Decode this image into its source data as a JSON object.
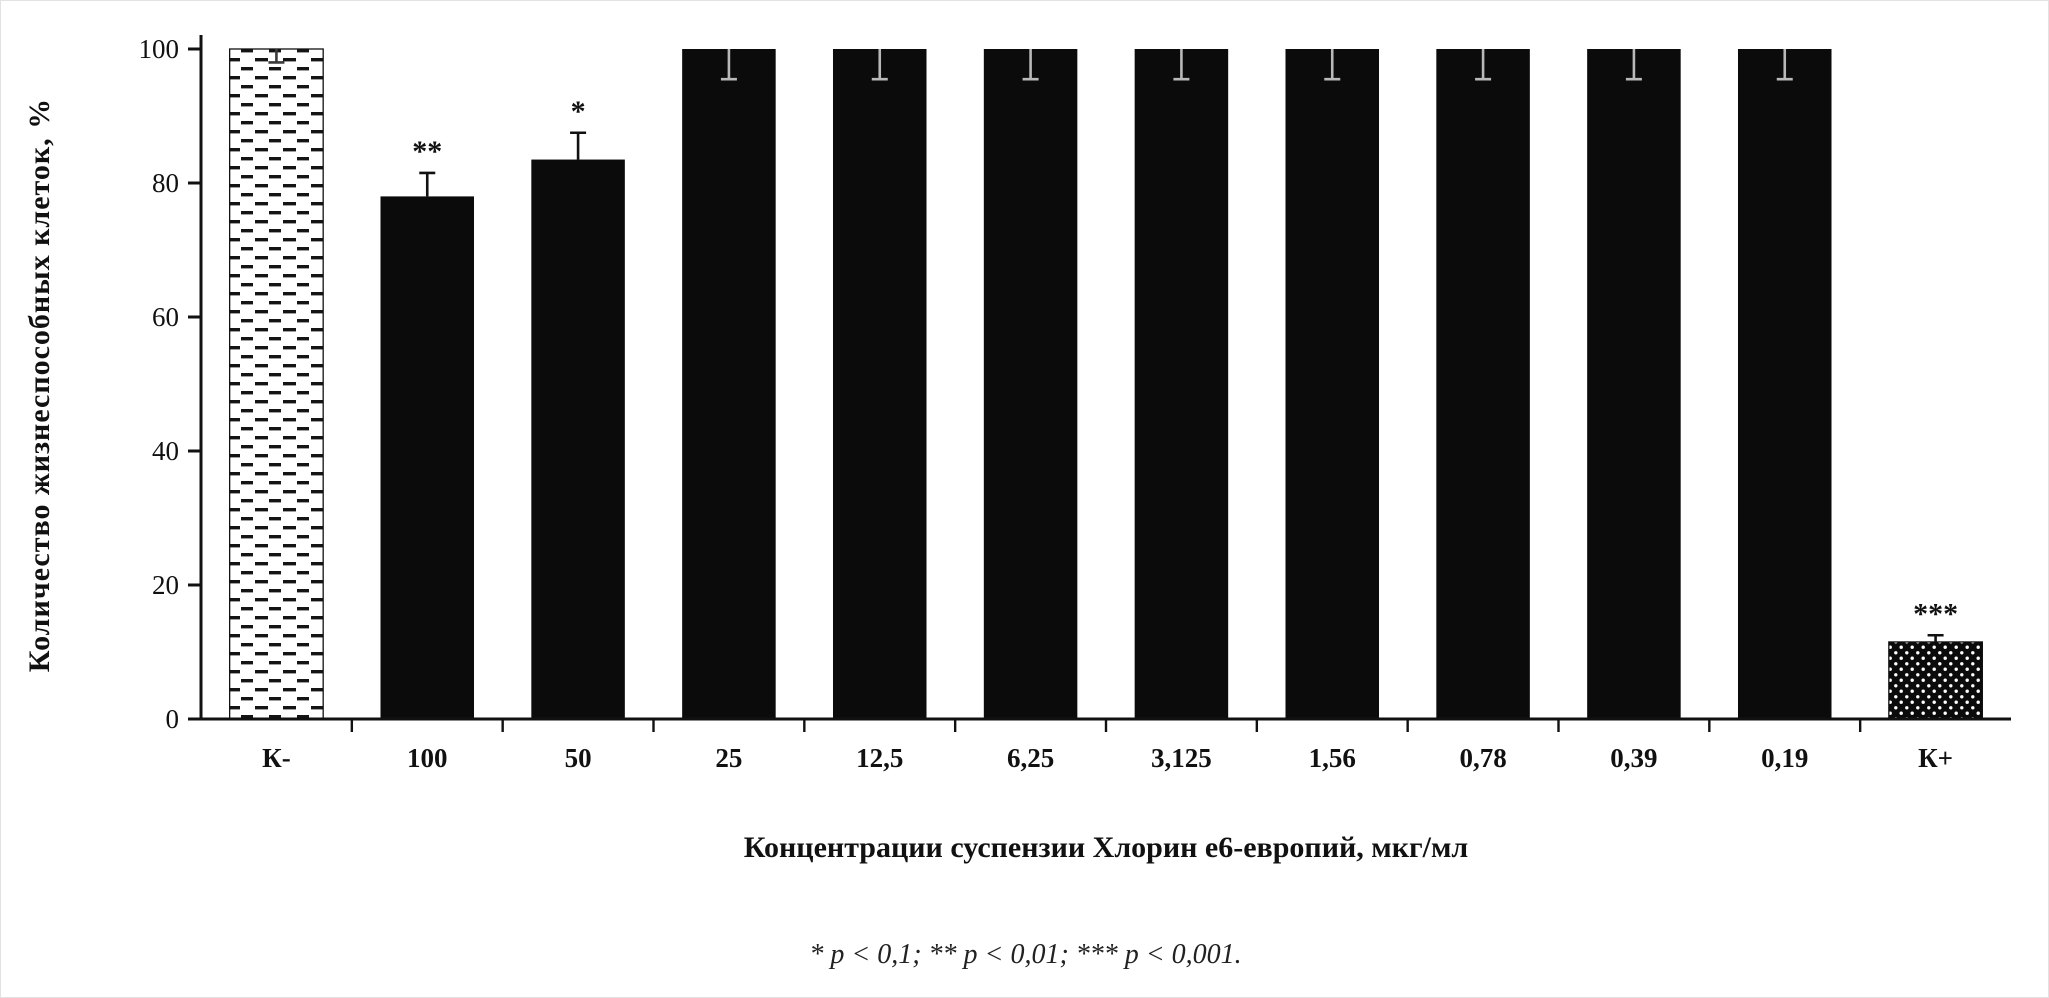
{
  "figure": {
    "footnote": "* p < 0,1; ** p < 0,01; *** p < 0,001."
  },
  "chart_data": {
    "type": "bar",
    "title": "",
    "xlabel": "Концентрации суспензии Хлорин е6-европий, мкг/мл",
    "ylabel": "Количество жизнеспособных клеток, %",
    "ylim": [
      0,
      100
    ],
    "yticks": [
      0,
      20,
      40,
      60,
      80,
      100
    ],
    "categories": [
      "К-",
      "100",
      "50",
      "25",
      "12,5",
      "6,25",
      "3,125",
      "1,56",
      "0,78",
      "0,39",
      "0,19",
      "К+"
    ],
    "values": [
      100,
      78,
      83.5,
      100,
      100,
      100,
      100,
      100,
      100,
      100,
      100,
      11.5
    ],
    "errors": [
      2,
      3.5,
      4,
      4.5,
      4.5,
      4.5,
      4.5,
      4.5,
      4.5,
      4.5,
      4.5,
      1
    ],
    "annotations": [
      "",
      "**",
      "*",
      "",
      "",
      "",
      "",
      "",
      "",
      "",
      "",
      "***"
    ],
    "bar_styles": [
      "dashed-pattern",
      "solid",
      "solid",
      "solid",
      "solid",
      "solid",
      "solid",
      "solid",
      "solid",
      "solid",
      "solid",
      "dotted-pattern"
    ],
    "bar_color": "#0b0b0b",
    "axis_color": "#111111",
    "grid": false,
    "legend": "none"
  }
}
